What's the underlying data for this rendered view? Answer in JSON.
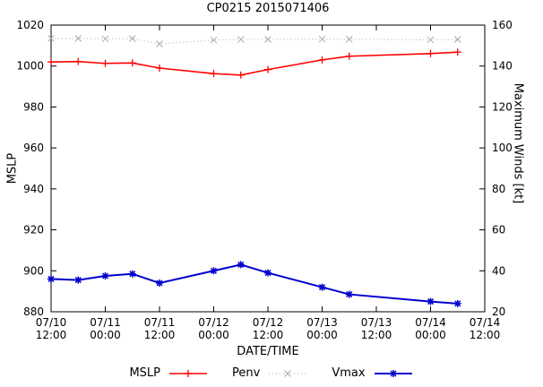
{
  "chart_data": {
    "type": "line",
    "title": "CP0215 2015071406",
    "xlabel": "DATE/TIME",
    "ylabel": "MSLP",
    "y2label": "Maximum Winds [kt]",
    "grid": false,
    "legend_position": "bottom",
    "yaxis": {
      "min": 880,
      "max": 1020,
      "ticks": [
        880,
        900,
        920,
        940,
        960,
        980,
        1000,
        1020
      ]
    },
    "y2axis": {
      "min": 20,
      "max": 160,
      "ticks": [
        20,
        40,
        60,
        80,
        100,
        120,
        140,
        160
      ]
    },
    "xaxis": {
      "min": 0,
      "max": 96,
      "ticks": [
        {
          "t": 0,
          "date": "07/10",
          "time": "12:00"
        },
        {
          "t": 12,
          "date": "07/11",
          "time": "00:00"
        },
        {
          "t": 24,
          "date": "07/11",
          "time": "12:00"
        },
        {
          "t": 36,
          "date": "07/12",
          "time": "00:00"
        },
        {
          "t": 48,
          "date": "07/12",
          "time": "12:00"
        },
        {
          "t": 60,
          "date": "07/13",
          "time": "00:00"
        },
        {
          "t": 72,
          "date": "07/13",
          "time": "12:00"
        },
        {
          "t": 84,
          "date": "07/14",
          "time": "00:00"
        },
        {
          "t": 96,
          "date": "07/14",
          "time": "12:00"
        }
      ]
    },
    "x_hours": [
      0,
      6,
      12,
      18,
      24,
      36,
      42,
      48,
      60,
      66,
      84,
      90
    ],
    "series": [
      {
        "name": "MSLP",
        "axis": "y",
        "color": "#ff0000",
        "marker": "plus",
        "marker_size": 4,
        "marker_width": 1.3,
        "width": 1.6,
        "dash": "",
        "values": [
          1002,
          1002.2,
          1001.3,
          1001.5,
          999,
          996.3,
          995.6,
          998.3,
          1003,
          1004.8,
          1006.1,
          1006.8
        ]
      },
      {
        "name": "Penv",
        "axis": "y",
        "color": "#aaaaaa",
        "marker": "cross",
        "marker_size": 3.5,
        "marker_width": 1,
        "width": 1,
        "dash": "1,3",
        "values": [
          1013.5,
          1013.5,
          1013.3,
          1013.4,
          1010.8,
          1012.7,
          1013,
          1013,
          1013.2,
          1013.1,
          1012.8,
          1013
        ]
      },
      {
        "name": "Vmax",
        "axis": "y2",
        "color": "#0000cc",
        "marker": "star",
        "marker_size": 4,
        "marker_width": 1.5,
        "width": 2,
        "dash": "",
        "values": [
          36,
          35.5,
          37.5,
          38.5,
          34,
          40,
          43,
          39,
          32,
          28.5,
          25,
          24
        ]
      }
    ]
  }
}
